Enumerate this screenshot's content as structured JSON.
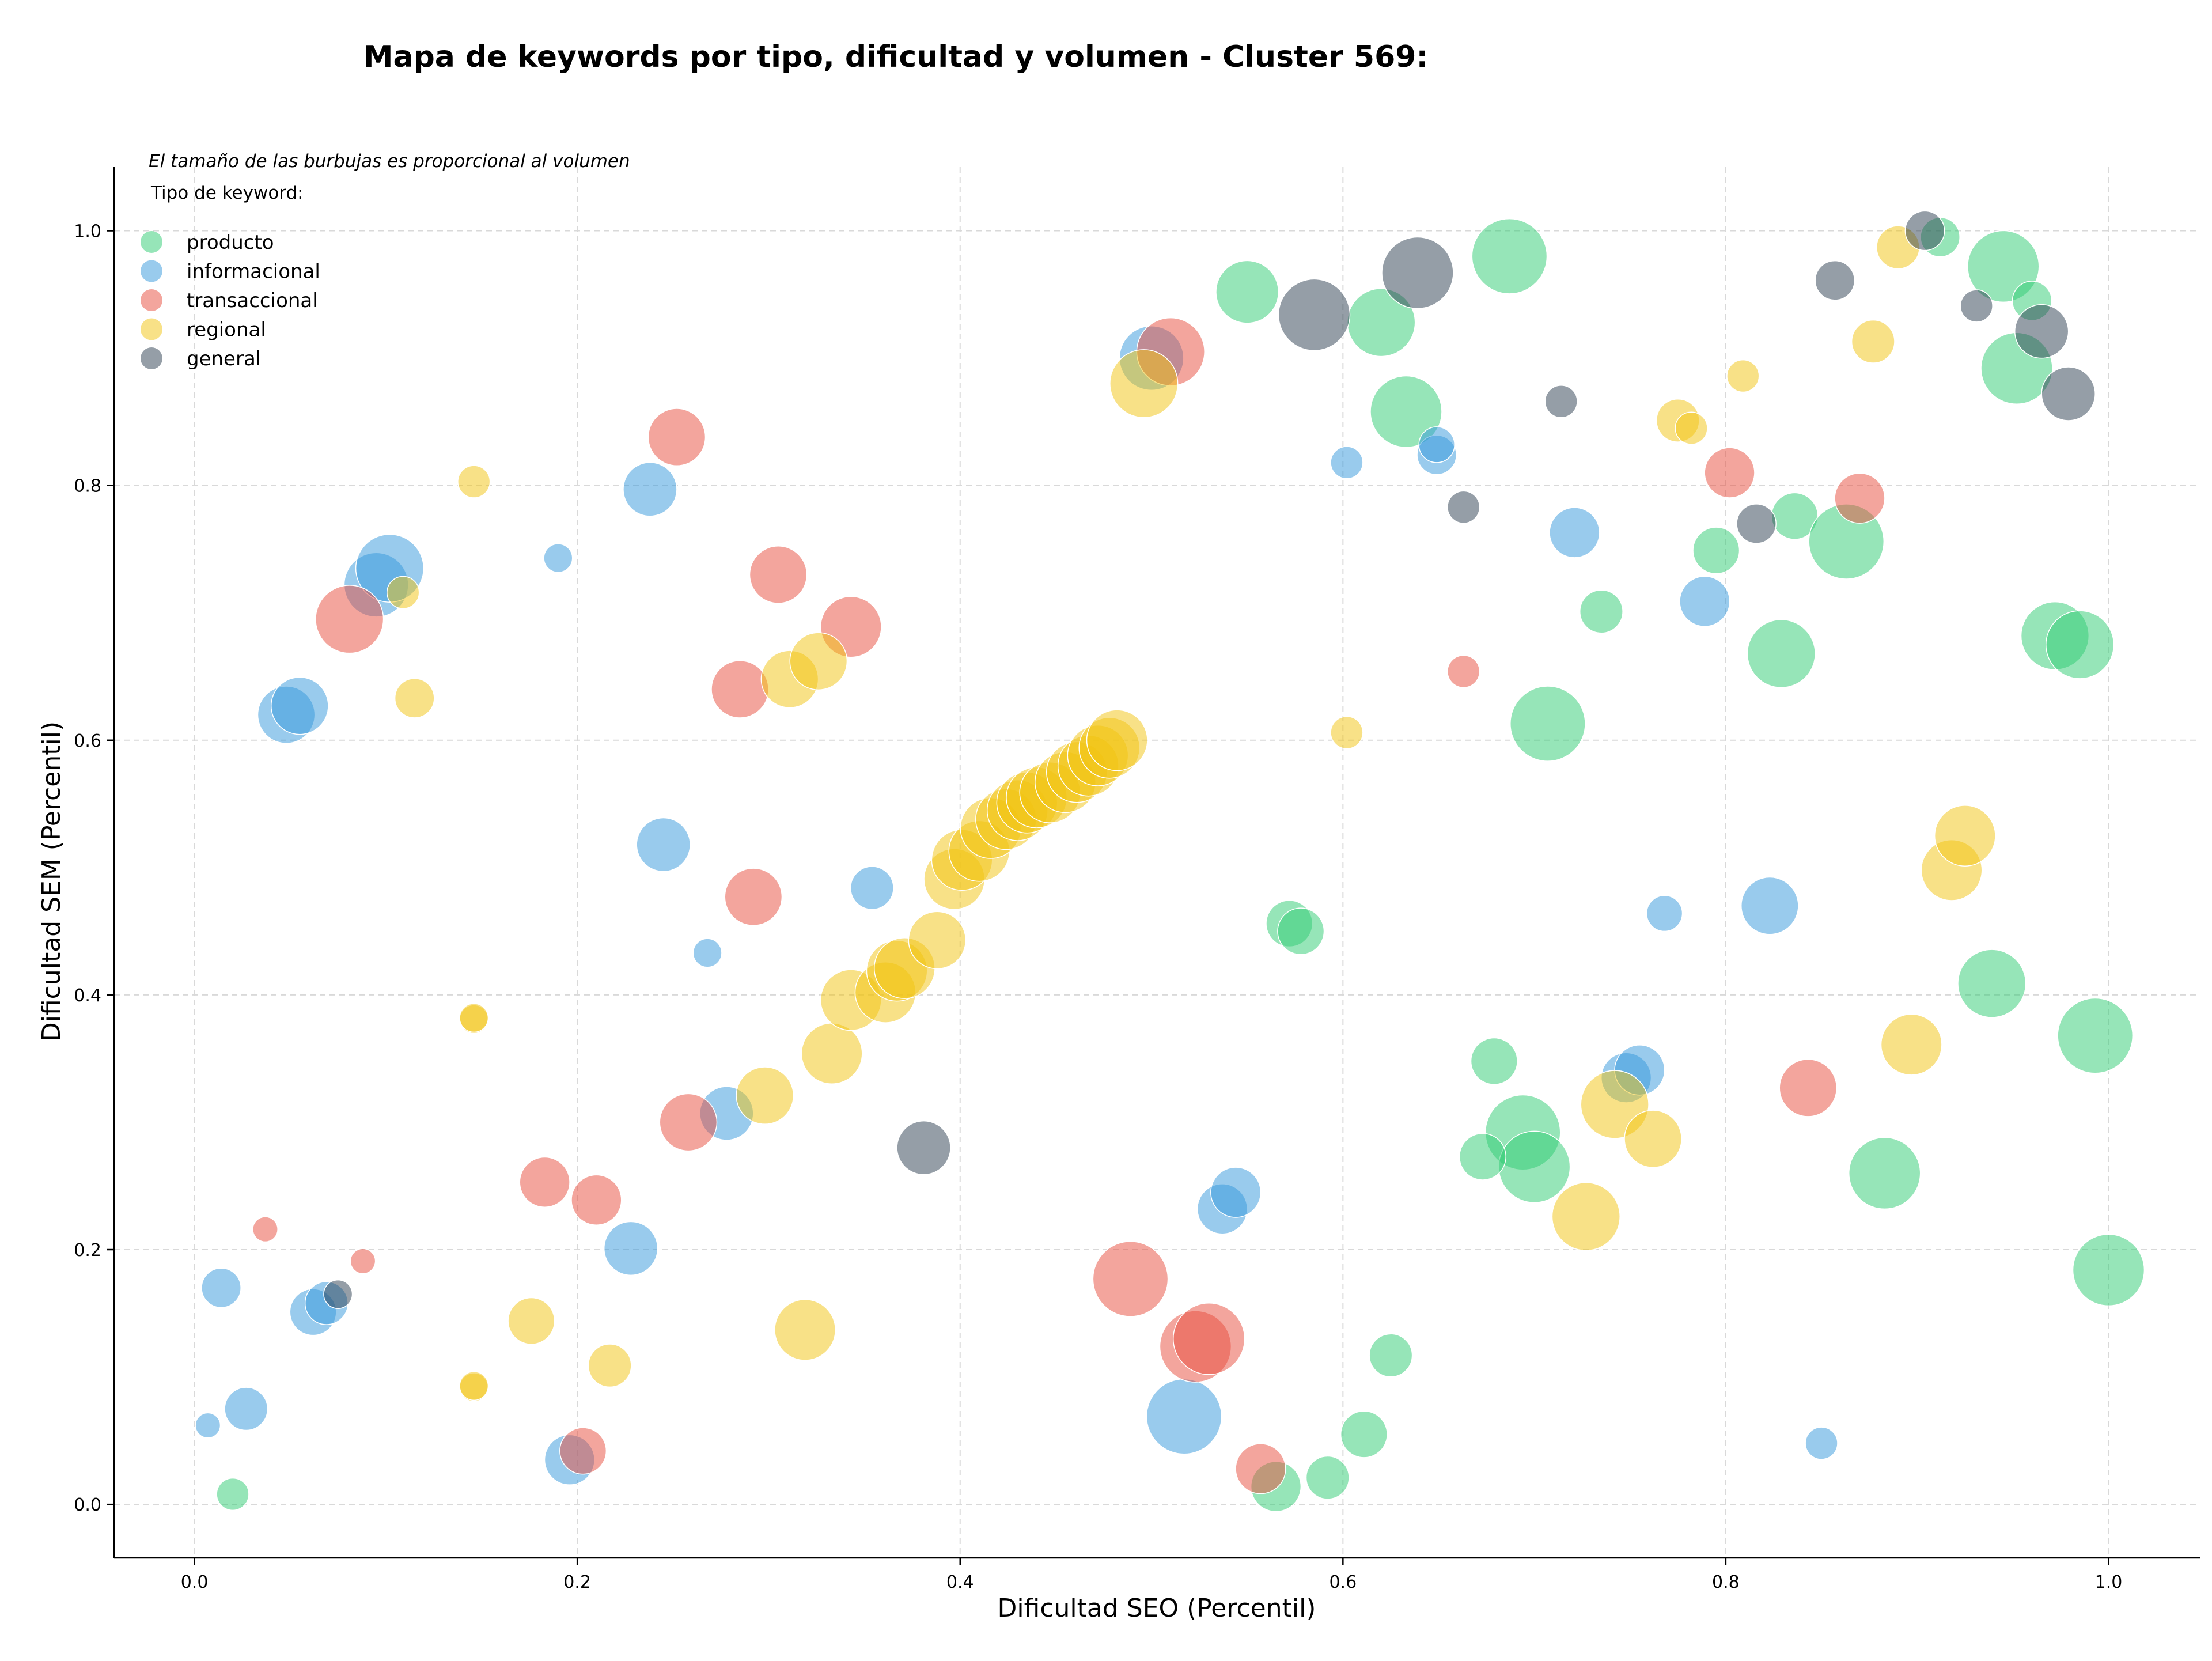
{
  "chart_data": {
    "type": "scatter",
    "title": "Mapa de keywords por tipo, dificultad y volumen - Cluster 569:",
    "xlabel": "Dificultad SEO (Percentil)",
    "ylabel": "Dificultad SEM (Percentil)",
    "xlim": [
      -0.042,
      1.048
    ],
    "ylim": [
      -0.042,
      1.05
    ],
    "xticks": [
      "0.0",
      "0.2",
      "0.4",
      "0.6",
      "0.8",
      "1.0"
    ],
    "yticks": [
      "0.0",
      "0.2",
      "0.4",
      "0.6",
      "0.8",
      "1.0"
    ],
    "grid": true,
    "size_note": "El tamaño de las burbujas es proporcional al volumen",
    "legend": {
      "title": "Tipo de keyword:",
      "placement": "top-left",
      "entries": [
        "producto",
        "informacional",
        "transaccional",
        "regional",
        "general"
      ]
    },
    "series": [
      {
        "name": "producto",
        "color": "#2ecc71",
        "points": [
          [
            0.02,
            0.008,
            18
          ],
          [
            0.55,
            0.952,
            35
          ],
          [
            0.62,
            0.928,
            38
          ],
          [
            0.633,
            0.858,
            40
          ],
          [
            0.687,
            0.98,
            42
          ],
          [
            0.912,
            0.995,
            22
          ],
          [
            0.945,
            0.972,
            40
          ],
          [
            0.96,
            0.945,
            22
          ],
          [
            0.952,
            0.892,
            40
          ],
          [
            0.836,
            0.776,
            26
          ],
          [
            0.863,
            0.756,
            42
          ],
          [
            0.795,
            0.749,
            26
          ],
          [
            0.735,
            0.701,
            24
          ],
          [
            0.829,
            0.668,
            38
          ],
          [
            0.972,
            0.682,
            38
          ],
          [
            0.985,
            0.675,
            38
          ],
          [
            0.707,
            0.613,
            42
          ],
          [
            0.572,
            0.456,
            26
          ],
          [
            0.578,
            0.45,
            26
          ],
          [
            0.679,
            0.348,
            26
          ],
          [
            0.694,
            0.292,
            42
          ],
          [
            0.7,
            0.265,
            40
          ],
          [
            0.673,
            0.273,
            26
          ],
          [
            0.939,
            0.409,
            38
          ],
          [
            0.993,
            0.368,
            42
          ],
          [
            0.883,
            0.26,
            40
          ],
          [
            1.0,
            0.184,
            40
          ],
          [
            0.625,
            0.117,
            24
          ],
          [
            0.611,
            0.055,
            26
          ],
          [
            0.592,
            0.021,
            24
          ],
          [
            0.565,
            0.014,
            28
          ]
        ]
      },
      {
        "name": "informacional",
        "color": "#3498db",
        "points": [
          [
            0.007,
            0.062,
            14
          ],
          [
            0.014,
            0.17,
            22
          ],
          [
            0.027,
            0.075,
            24
          ],
          [
            0.062,
            0.151,
            26
          ],
          [
            0.069,
            0.158,
            24
          ],
          [
            0.048,
            0.62,
            32
          ],
          [
            0.055,
            0.627,
            32
          ],
          [
            0.095,
            0.722,
            36
          ],
          [
            0.102,
            0.735,
            38
          ],
          [
            0.19,
            0.743,
            16
          ],
          [
            0.238,
            0.797,
            30
          ],
          [
            0.245,
            0.518,
            30
          ],
          [
            0.268,
            0.433,
            16
          ],
          [
            0.354,
            0.484,
            24
          ],
          [
            0.278,
            0.307,
            30
          ],
          [
            0.228,
            0.201,
            30
          ],
          [
            0.196,
            0.035,
            28
          ],
          [
            0.5,
            0.9,
            36
          ],
          [
            0.517,
            0.069,
            42
          ],
          [
            0.537,
            0.232,
            28
          ],
          [
            0.544,
            0.245,
            28
          ],
          [
            0.602,
            0.818,
            18
          ],
          [
            0.649,
            0.824,
            22
          ],
          [
            0.649,
            0.832,
            20
          ],
          [
            0.721,
            0.763,
            28
          ],
          [
            0.748,
            0.335,
            28
          ],
          [
            0.755,
            0.341,
            28
          ],
          [
            0.768,
            0.464,
            20
          ],
          [
            0.789,
            0.709,
            28
          ],
          [
            0.823,
            0.47,
            32
          ],
          [
            0.85,
            0.048,
            18
          ]
        ]
      },
      {
        "name": "transaccional",
        "color": "#e74c3c",
        "points": [
          [
            0.037,
            0.216,
            14
          ],
          [
            0.088,
            0.191,
            14
          ],
          [
            0.081,
            0.695,
            38
          ],
          [
            0.252,
            0.838,
            32
          ],
          [
            0.305,
            0.73,
            32
          ],
          [
            0.285,
            0.64,
            32
          ],
          [
            0.343,
            0.689,
            34
          ],
          [
            0.292,
            0.477,
            32
          ],
          [
            0.258,
            0.3,
            32
          ],
          [
            0.183,
            0.253,
            28
          ],
          [
            0.21,
            0.239,
            28
          ],
          [
            0.203,
            0.042,
            26
          ],
          [
            0.51,
            0.905,
            38
          ],
          [
            0.489,
            0.177,
            42
          ],
          [
            0.523,
            0.124,
            40
          ],
          [
            0.53,
            0.13,
            40
          ],
          [
            0.557,
            0.028,
            28
          ],
          [
            0.663,
            0.654,
            18
          ],
          [
            0.802,
            0.81,
            28
          ],
          [
            0.87,
            0.79,
            28
          ],
          [
            0.843,
            0.327,
            32
          ]
        ]
      },
      {
        "name": "regional",
        "color": "#f1c40f",
        "points": [
          [
            0.146,
            0.803,
            18
          ],
          [
            0.109,
            0.716,
            18
          ],
          [
            0.115,
            0.633,
            22
          ],
          [
            0.146,
            0.381,
            16
          ],
          [
            0.146,
            0.382,
            16
          ],
          [
            0.146,
            0.092,
            16
          ],
          [
            0.146,
            0.093,
            16
          ],
          [
            0.176,
            0.144,
            26
          ],
          [
            0.217,
            0.109,
            24
          ],
          [
            0.298,
            0.321,
            32
          ],
          [
            0.319,
            0.137,
            34
          ],
          [
            0.333,
            0.354,
            34
          ],
          [
            0.343,
            0.396,
            34
          ],
          [
            0.361,
            0.402,
            34
          ],
          [
            0.367,
            0.419,
            34
          ],
          [
            0.371,
            0.421,
            34
          ],
          [
            0.388,
            0.443,
            32
          ],
          [
            0.397,
            0.491,
            34
          ],
          [
            0.401,
            0.506,
            34
          ],
          [
            0.41,
            0.513,
            34
          ],
          [
            0.416,
            0.531,
            34
          ],
          [
            0.424,
            0.538,
            34
          ],
          [
            0.43,
            0.545,
            34
          ],
          [
            0.435,
            0.551,
            34
          ],
          [
            0.44,
            0.555,
            34
          ],
          [
            0.447,
            0.559,
            34
          ],
          [
            0.455,
            0.567,
            34
          ],
          [
            0.461,
            0.575,
            34
          ],
          [
            0.467,
            0.58,
            34
          ],
          [
            0.472,
            0.588,
            34
          ],
          [
            0.478,
            0.594,
            34
          ],
          [
            0.482,
            0.6,
            34
          ],
          [
            0.311,
            0.648,
            32
          ],
          [
            0.326,
            0.662,
            32
          ],
          [
            0.496,
            0.88,
            38
          ],
          [
            0.602,
            0.606,
            18
          ],
          [
            0.727,
            0.226,
            38
          ],
          [
            0.742,
            0.314,
            38
          ],
          [
            0.762,
            0.287,
            32
          ],
          [
            0.775,
            0.851,
            24
          ],
          [
            0.782,
            0.845,
            18
          ],
          [
            0.809,
            0.886,
            18
          ],
          [
            0.877,
            0.913,
            24
          ],
          [
            0.89,
            0.987,
            24
          ],
          [
            0.897,
            0.361,
            34
          ],
          [
            0.918,
            0.498,
            34
          ],
          [
            0.925,
            0.525,
            34
          ]
        ]
      },
      {
        "name": "general",
        "color": "#2c3e50",
        "points": [
          [
            0.075,
            0.165,
            16
          ],
          [
            0.381,
            0.28,
            30
          ],
          [
            0.585,
            0.934,
            40
          ],
          [
            0.639,
            0.967,
            40
          ],
          [
            0.663,
            0.783,
            18
          ],
          [
            0.714,
            0.866,
            18
          ],
          [
            0.816,
            0.77,
            22
          ],
          [
            0.857,
            0.961,
            22
          ],
          [
            0.904,
            1.0,
            22
          ],
          [
            0.931,
            0.941,
            18
          ],
          [
            0.965,
            0.921,
            30
          ],
          [
            0.979,
            0.872,
            30
          ]
        ]
      }
    ]
  }
}
